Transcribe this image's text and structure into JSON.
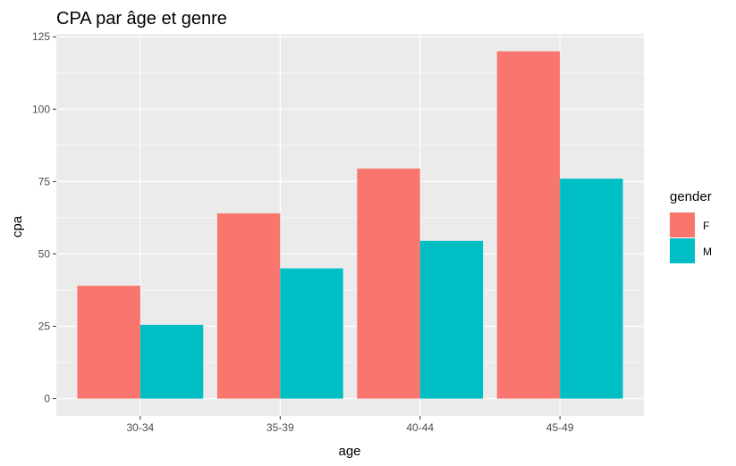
{
  "chart_data": {
    "type": "bar",
    "title": "CPA par âge et genre",
    "xlabel": "age",
    "ylabel": "cpa",
    "categories": [
      "30-34",
      "35-39",
      "40-44",
      "45-49"
    ],
    "series": [
      {
        "name": "F",
        "values": [
          39,
          64,
          79.5,
          120
        ],
        "color": "#F8766D"
      },
      {
        "name": "M",
        "values": [
          25.5,
          45,
          54.5,
          76
        ],
        "color": "#00BFC4"
      }
    ],
    "ylim": [
      -6,
      126
    ],
    "yticks": [
      0,
      25,
      50,
      75,
      100,
      125
    ],
    "grid": true,
    "legend": {
      "title": "gender",
      "placement": "right"
    },
    "panel_background": "#EBEBEB",
    "grid_color": "#FFFFFF"
  }
}
